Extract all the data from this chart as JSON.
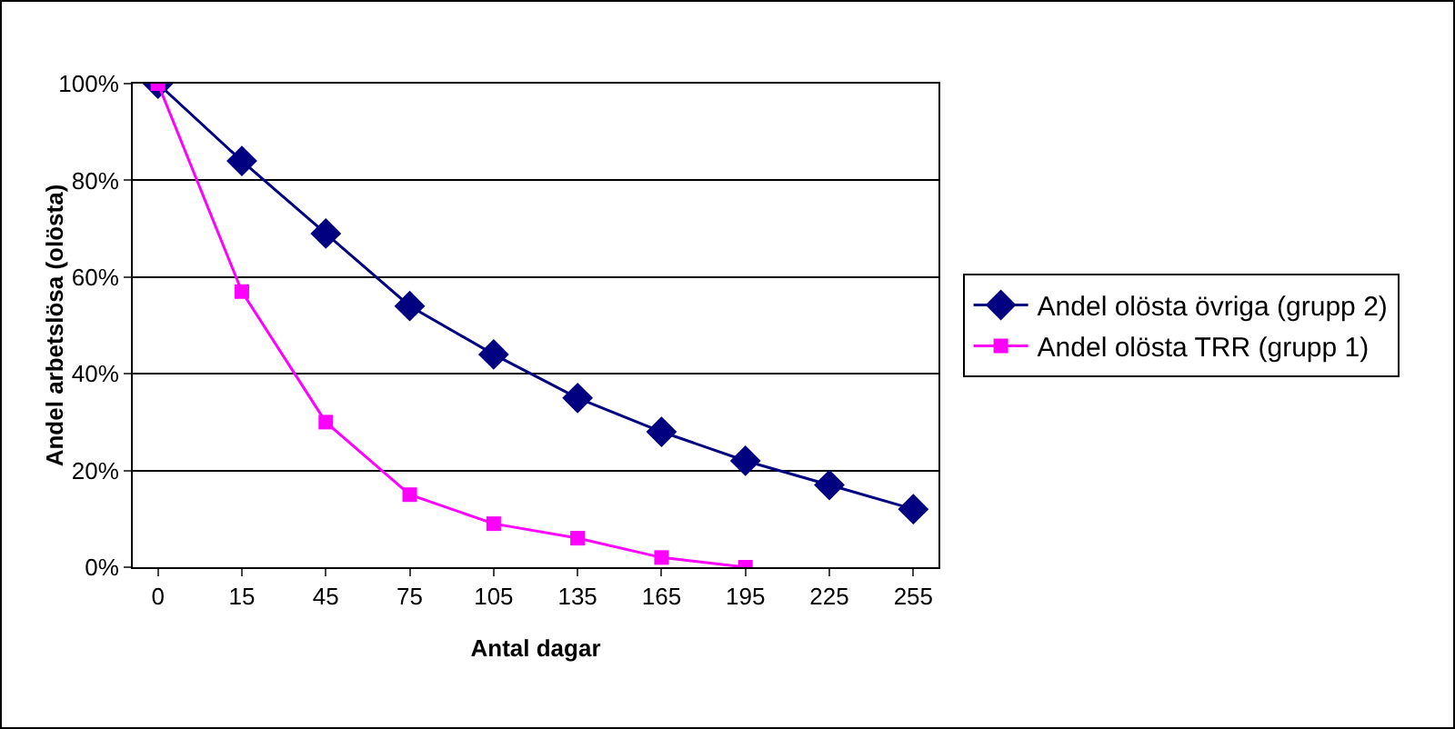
{
  "chart_data": {
    "type": "line",
    "xlabel": "Antal dagar",
    "ylabel": "Andel arbetslösa (olösta)",
    "categories": [
      "0",
      "15",
      "45",
      "75",
      "105",
      "135",
      "165",
      "195",
      "225",
      "255"
    ],
    "series": [
      {
        "name": "Andel olösta övriga (grupp 2)",
        "color": "#000080",
        "marker": "diamond",
        "values": [
          100,
          84,
          69,
          54,
          44,
          35,
          28,
          22,
          17,
          12
        ]
      },
      {
        "name": "Andel olösta TRR (grupp 1)",
        "color": "#ff00ff",
        "marker": "square",
        "values": [
          100,
          57,
          30,
          15,
          9,
          6,
          2,
          0,
          null,
          null
        ]
      }
    ],
    "ylim": [
      0,
      100
    ],
    "yticks": [
      {
        "value": 0,
        "label": "0%"
      },
      {
        "value": 20,
        "label": "20%"
      },
      {
        "value": 40,
        "label": "40%"
      },
      {
        "value": 60,
        "label": "60%"
      },
      {
        "value": 80,
        "label": "80%"
      },
      {
        "value": 100,
        "label": "100%"
      }
    ],
    "grid": "y",
    "legend": "right",
    "line_style": "solid"
  }
}
